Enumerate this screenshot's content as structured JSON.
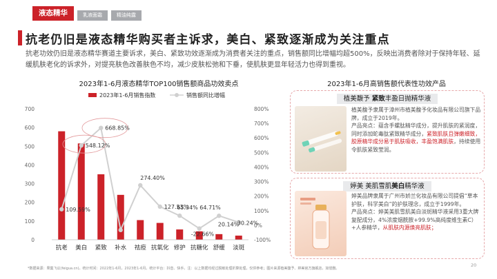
{
  "tabs": [
    {
      "label": "液态精华",
      "active": true
    },
    {
      "label": "乳液面霜",
      "active": false
    },
    {
      "label": "精油纯露",
      "active": false
    }
  ],
  "header": {
    "title": "抗老仍旧是液态精华购买者主诉求，美白、紧致逐渐成为关注重点",
    "subtitle": "抗老功效仍旧是液态精华赛道主要诉求，美白、紧致功效逐渐成为消费者关注的重点，销售额同比增幅均超500%，反映出消费者除对于保持年轻、延缓肌肤老化的诉求外，对提亮肤色改善肤色不均，减少皮肤松弛和下垂，使肌肤更显年轻活力也得到重视。"
  },
  "chart_data": {
    "type": "bar",
    "title": "2023年1-6月液态精华TOP100销售额商品功效卖点",
    "categories": [
      "抗老",
      "美白",
      "紧致",
      "补水",
      "祛痘",
      "抗氧化",
      "修护",
      "抗糖化",
      "舒缓",
      "淡斑"
    ],
    "series": [
      {
        "name": "2023年1-6月销售指数",
        "type": "bar",
        "values": [
          580,
          515,
          350,
          240,
          105,
          90,
          55,
          45,
          30,
          22
        ]
      },
      {
        "name": "销售额同比增幅",
        "type": "line",
        "values": [
          109.59,
          548.12,
          668.85,
          -33.0,
          274.4,
          127.53,
          65.34,
          -22.66,
          64.71,
          20.14
        ]
      }
    ],
    "visible_labels": [
      "109.59%",
      "548.12%",
      "668.85%",
      "",
      "274.40%",
      "127.53%",
      "65.34%",
      "-22.66%",
      "64.71%",
      "20.14%"
    ],
    "extra_label": "30.24%",
    "y_left_ticks": [
      0,
      100,
      200,
      300,
      400,
      500,
      600,
      700
    ],
    "y_right_ticks": [
      "-100%",
      "0%",
      "100%",
      "200%",
      "300%",
      "400%",
      "500%",
      "600%",
      "700%",
      "800%"
    ],
    "ylim_left": [
      0,
      700
    ],
    "ylim_right": [
      -100,
      800
    ],
    "legend_position": "top",
    "colors": {
      "bar": "#cc2229",
      "line": "#d0d0d0"
    }
  },
  "right_panel": {
    "title": "2023年1-6月高销售额代表性功效产品",
    "product1": {
      "heading_pre": "植美馥予 ",
      "heading_bold": "紧致",
      "heading_post": "丰盈日抛精华液",
      "intro": "植美馥予隶属于漳州市植美馥予化妆品有限公司旗下品牌，成立于2019年。",
      "detail_pre": "产品亮点：蕴含手螺肽精华成分，提升肌肤的紧润度，同时添加蛇毒肽紧致精华成分，",
      "detail_red": "紧致肌肤且弹嫩细致，胶原精华成分易于肌肤吸收，丰盈饱满肌肤",
      "detail_post": "，持续使用令肌肤紧致莹润。"
    },
    "product2": {
      "heading_pre": "婷美 美肌雪肌",
      "heading_bold": "美白",
      "heading_post": "精华液",
      "intro": "婷美品牌隶属于广州市娇兰化妆品有限公司提倡“草本护肤，科学美白”的护肤理念，成立于1999年。",
      "detail_pre": "产品亮点：婷美美肌雪肌美白淡斑精华液采用3重大牌复配成分，4%浓度烟酰胺+99.9%高纯度维生素C）+人参精华，",
      "detail_red": "从肌肤内源焕亮肌肤；"
    }
  },
  "footer": {
    "note": "*数据来源：果集飞瓜(feigua.cn)。统计时间：2022年1-6月，2023年1-6月。统计平台：抖音、快手。注：以上数据均经过脱敏处理折算处理，仅供参考；图片来源植美馥予、婷美官方旗舰店，如侵删。",
    "page": "20"
  }
}
